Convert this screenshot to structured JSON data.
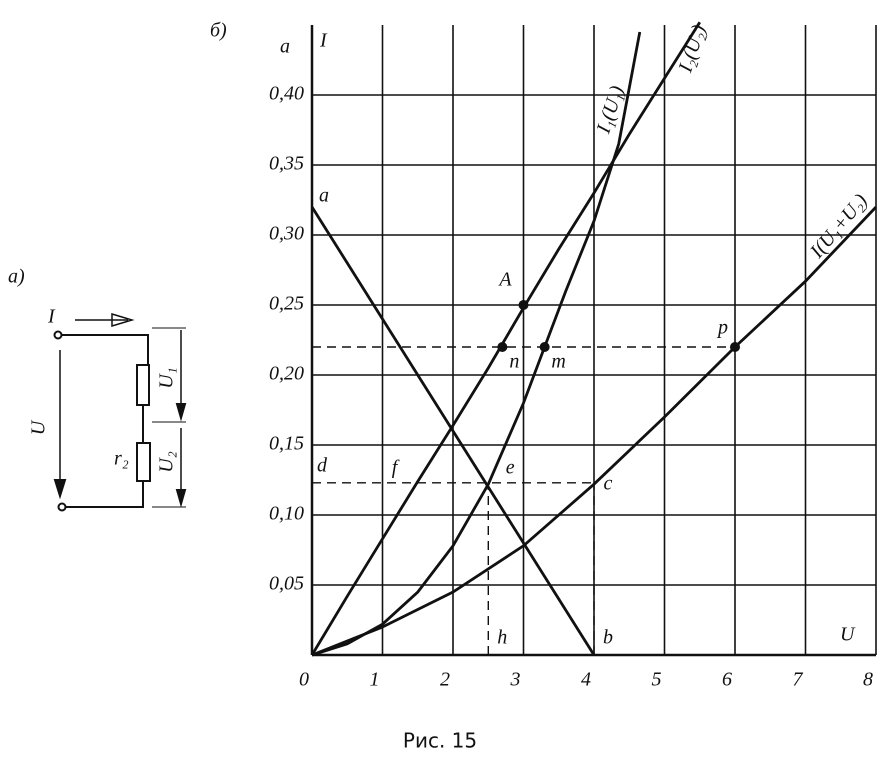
{
  "circuit": {
    "label": "а)",
    "current": "I",
    "voltage": "U",
    "u1": "U₁",
    "u2": "U₂",
    "r2": "r₂"
  },
  "caption": "Рис. 15",
  "chart_data": {
    "type": "line",
    "panel": "б)",
    "x_label": "U",
    "y_label": "I",
    "y_unit": "а",
    "xlim": [
      0,
      8
    ],
    "ylim": [
      0,
      0.45
    ],
    "xticks": [
      0,
      1,
      2,
      3,
      4,
      5,
      6,
      7,
      8
    ],
    "yticks": [
      {
        "value": 0.05,
        "label": "0,05"
      },
      {
        "value": 0.1,
        "label": "0,10"
      },
      {
        "value": 0.15,
        "label": "0,15"
      },
      {
        "value": 0.2,
        "label": "0,20"
      },
      {
        "value": 0.25,
        "label": "0,25"
      },
      {
        "value": 0.3,
        "label": "0,30"
      },
      {
        "value": 0.35,
        "label": "0,35"
      },
      {
        "value": 0.4,
        "label": "0,40"
      }
    ],
    "grid": true,
    "color": "#111",
    "series": [
      {
        "name": "I₂(U₂)",
        "x": [
          0,
          0.5,
          1,
          1.5,
          2,
          2.5,
          3,
          3.5,
          4,
          4.5,
          5,
          5.5
        ],
        "values": [
          0,
          0.042,
          0.083,
          0.124,
          0.164,
          0.205,
          0.248,
          0.29,
          0.33,
          0.372,
          0.412,
          0.452
        ]
      },
      {
        "name": "I₁(U₁)",
        "x": [
          0,
          0.5,
          1,
          1.5,
          2,
          2.5,
          3,
          3.3,
          3.6,
          4,
          4.35,
          4.65
        ],
        "values": [
          0,
          0.008,
          0.022,
          0.045,
          0.078,
          0.122,
          0.18,
          0.22,
          0.26,
          0.31,
          0.365,
          0.445
        ]
      },
      {
        "name": "I(U₁+U₂)",
        "x": [
          0,
          1,
          2,
          3,
          4,
          5,
          6,
          7,
          8
        ],
        "values": [
          0,
          0.02,
          0.045,
          0.078,
          0.122,
          0.17,
          0.22,
          0.267,
          0.32
        ]
      },
      {
        "x": [
          0,
          4
        ],
        "values": [
          0.32,
          0
        ]
      }
    ],
    "guides": [
      {
        "x": [
          0,
          6
        ],
        "values": [
          0.22,
          0.22
        ]
      },
      {
        "x": [
          0,
          4
        ],
        "values": [
          0.123,
          0.123
        ]
      },
      {
        "x": [
          2.5,
          2.5
        ],
        "values": [
          0,
          0.123
        ]
      },
      {
        "x": [
          4,
          4
        ],
        "values": [
          0,
          0.123
        ]
      }
    ],
    "points": [
      {
        "label": "A",
        "x": 3,
        "y": 0.25,
        "marker": true
      },
      {
        "label": "n",
        "x": 2.7,
        "y": 0.22,
        "marker": true
      },
      {
        "label": "m",
        "x": 3.3,
        "y": 0.22,
        "marker": true
      },
      {
        "label": "p",
        "x": 6,
        "y": 0.22,
        "marker": true
      },
      {
        "label": "a",
        "x": 0,
        "y": 0.32,
        "marker": false
      },
      {
        "label": "b",
        "x": 4,
        "y": 0,
        "marker": false
      },
      {
        "label": "c",
        "x": 4,
        "y": 0.123,
        "marker": false
      },
      {
        "label": "d",
        "x": 0,
        "y": 0.123,
        "marker": false
      },
      {
        "label": "e",
        "x": 2.5,
        "y": 0.123,
        "marker": false
      },
      {
        "label": "f",
        "x": 1,
        "y": 0.123,
        "marker": false
      },
      {
        "label": "h",
        "x": 2.5,
        "y": 0,
        "marker": false
      }
    ]
  }
}
